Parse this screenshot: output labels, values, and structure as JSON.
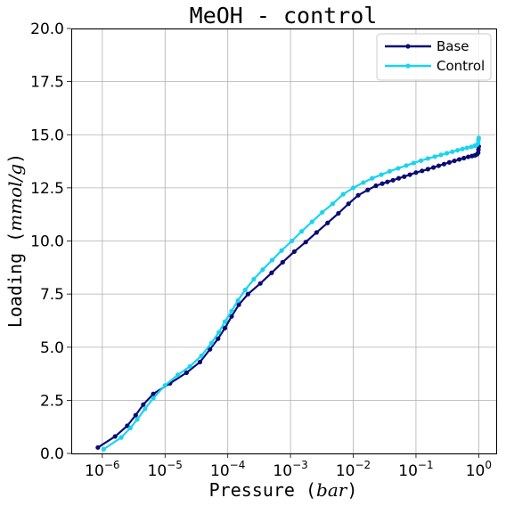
{
  "chart_data": {
    "type": "line",
    "title": "MeOH - control",
    "xlabel": "Pressure ($bar$)",
    "xlabel_parts": {
      "prefix": "Pressure (",
      "unit": "bar",
      "suffix": ")"
    },
    "ylabel": "Loading ($mmol/g$)",
    "ylabel_parts": {
      "prefix": "Loading (",
      "unit": "mmol/g",
      "suffix": ")"
    },
    "x_scale": "log",
    "xlim": [
      3.2e-07,
      1.9
    ],
    "ylim": [
      0,
      20
    ],
    "x_ticks": [
      {
        "value": 1e-06,
        "base": "10",
        "exp": "−6"
      },
      {
        "value": 1e-05,
        "base": "10",
        "exp": "−5"
      },
      {
        "value": 0.0001,
        "base": "10",
        "exp": "−4"
      },
      {
        "value": 0.001,
        "base": "10",
        "exp": "−3"
      },
      {
        "value": 0.01,
        "base": "10",
        "exp": "−2"
      },
      {
        "value": 0.1,
        "base": "10",
        "exp": "−1"
      },
      {
        "value": 1,
        "base": "10",
        "exp": "0"
      }
    ],
    "y_ticks": [
      {
        "value": 0,
        "label": "0.0"
      },
      {
        "value": 2.5,
        "label": "2.5"
      },
      {
        "value": 5,
        "label": "5.0"
      },
      {
        "value": 7.5,
        "label": "7.5"
      },
      {
        "value": 10,
        "label": "10.0"
      },
      {
        "value": 12.5,
        "label": "12.5"
      },
      {
        "value": 15,
        "label": "15.0"
      },
      {
        "value": 17.5,
        "label": "17.5"
      },
      {
        "value": 20,
        "label": "20.0"
      }
    ],
    "grid": true,
    "legend_position": "top-right",
    "series": [
      {
        "name": "Base",
        "color": "#0b0b74",
        "points": [
          [
            8.5e-07,
            0.28
          ],
          [
            1.6e-06,
            0.8
          ],
          [
            2.5e-06,
            1.3
          ],
          [
            3.4e-06,
            1.8
          ],
          [
            4.5e-06,
            2.3
          ],
          [
            6.5e-06,
            2.8
          ],
          [
            1.2e-05,
            3.3
          ],
          [
            2.2e-05,
            3.8
          ],
          [
            3.6e-05,
            4.3
          ],
          [
            5.2e-05,
            4.9
          ],
          [
            7e-05,
            5.4
          ],
          [
            9e-05,
            5.9
          ],
          [
            0.000115,
            6.45
          ],
          [
            0.00015,
            7.0
          ],
          [
            0.00021,
            7.5
          ],
          [
            0.00033,
            8.0
          ],
          [
            0.0005,
            8.5
          ],
          [
            0.00075,
            9.0
          ],
          [
            0.00115,
            9.5
          ],
          [
            0.00175,
            9.95
          ],
          [
            0.0026,
            10.4
          ],
          [
            0.0039,
            10.85
          ],
          [
            0.0058,
            11.3
          ],
          [
            0.0084,
            11.75
          ],
          [
            0.012,
            12.15
          ],
          [
            0.017,
            12.4
          ],
          [
            0.023,
            12.6
          ],
          [
            0.029,
            12.7
          ],
          [
            0.035,
            12.78
          ],
          [
            0.043,
            12.86
          ],
          [
            0.053,
            12.95
          ],
          [
            0.065,
            13.03
          ],
          [
            0.08,
            13.12
          ],
          [
            0.1,
            13.22
          ],
          [
            0.125,
            13.3
          ],
          [
            0.155,
            13.38
          ],
          [
            0.19,
            13.46
          ],
          [
            0.23,
            13.54
          ],
          [
            0.28,
            13.62
          ],
          [
            0.34,
            13.7
          ],
          [
            0.41,
            13.77
          ],
          [
            0.49,
            13.84
          ],
          [
            0.58,
            13.9
          ],
          [
            0.68,
            13.96
          ],
          [
            0.78,
            14.0
          ],
          [
            0.87,
            14.03
          ],
          [
            0.94,
            14.08
          ],
          [
            0.98,
            14.15
          ],
          [
            0.99,
            14.3
          ],
          [
            1.0,
            14.45
          ]
        ]
      },
      {
        "name": "Control",
        "color": "#1ad3f0",
        "points": [
          [
            1.05e-06,
            0.2
          ],
          [
            2e-06,
            0.75
          ],
          [
            2.8e-06,
            1.2
          ],
          [
            3.6e-06,
            1.6
          ],
          [
            4.8e-06,
            2.1
          ],
          [
            6.5e-06,
            2.6
          ],
          [
            1e-05,
            3.2
          ],
          [
            1.6e-05,
            3.7
          ],
          [
            2.5e-05,
            4.1
          ],
          [
            3.8e-05,
            4.6
          ],
          [
            5.5e-05,
            5.2
          ],
          [
            7.2e-05,
            5.7
          ],
          [
            9e-05,
            6.2
          ],
          [
            0.000115,
            6.7
          ],
          [
            0.000145,
            7.2
          ],
          [
            0.00019,
            7.7
          ],
          [
            0.00026,
            8.2
          ],
          [
            0.00036,
            8.65
          ],
          [
            0.00051,
            9.1
          ],
          [
            0.00072,
            9.55
          ],
          [
            0.00105,
            10.0
          ],
          [
            0.0015,
            10.45
          ],
          [
            0.0022,
            10.9
          ],
          [
            0.0032,
            11.35
          ],
          [
            0.0047,
            11.75
          ],
          [
            0.0069,
            12.2
          ],
          [
            0.01,
            12.5
          ],
          [
            0.0145,
            12.75
          ],
          [
            0.02,
            12.95
          ],
          [
            0.028,
            13.12
          ],
          [
            0.038,
            13.28
          ],
          [
            0.052,
            13.42
          ],
          [
            0.07,
            13.55
          ],
          [
            0.092,
            13.67
          ],
          [
            0.12,
            13.78
          ],
          [
            0.155,
            13.88
          ],
          [
            0.2,
            13.97
          ],
          [
            0.25,
            14.05
          ],
          [
            0.31,
            14.13
          ],
          [
            0.38,
            14.2
          ],
          [
            0.46,
            14.27
          ],
          [
            0.55,
            14.33
          ],
          [
            0.65,
            14.38
          ],
          [
            0.76,
            14.43
          ],
          [
            0.86,
            14.48
          ],
          [
            0.93,
            14.52
          ],
          [
            0.98,
            14.6
          ],
          [
            0.99,
            14.75
          ],
          [
            1.0,
            14.85
          ]
        ]
      }
    ]
  }
}
